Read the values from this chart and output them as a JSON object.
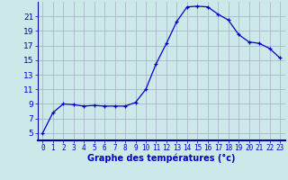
{
  "hours": [
    0,
    1,
    2,
    3,
    4,
    5,
    6,
    7,
    8,
    9,
    10,
    11,
    12,
    13,
    14,
    15,
    16,
    17,
    18,
    19,
    20,
    21,
    22,
    23
  ],
  "temps": [
    5.0,
    7.8,
    9.0,
    8.9,
    8.7,
    8.8,
    8.7,
    8.7,
    8.7,
    9.2,
    11.0,
    14.5,
    17.3,
    20.3,
    22.3,
    22.4,
    22.3,
    21.3,
    20.5,
    18.5,
    17.5,
    17.3,
    16.6,
    15.3
  ],
  "xlabel": "Graphe des températures (°c)",
  "xlim": [
    -0.5,
    23.5
  ],
  "ylim": [
    4,
    23
  ],
  "yticks": [
    5,
    7,
    9,
    11,
    13,
    15,
    17,
    19,
    21
  ],
  "xticks": [
    0,
    1,
    2,
    3,
    4,
    5,
    6,
    7,
    8,
    9,
    10,
    11,
    12,
    13,
    14,
    15,
    16,
    17,
    18,
    19,
    20,
    21,
    22,
    23
  ],
  "line_color": "#0000cc",
  "marker": "+",
  "bg_color": "#cce8e8",
  "grid_color": "#aaaacc",
  "axis_color": "#0000aa",
  "label_color": "#0000cc",
  "spine_bottom_color": "#0000aa",
  "xlabel_fontsize": 7,
  "xlabel_bold": true
}
